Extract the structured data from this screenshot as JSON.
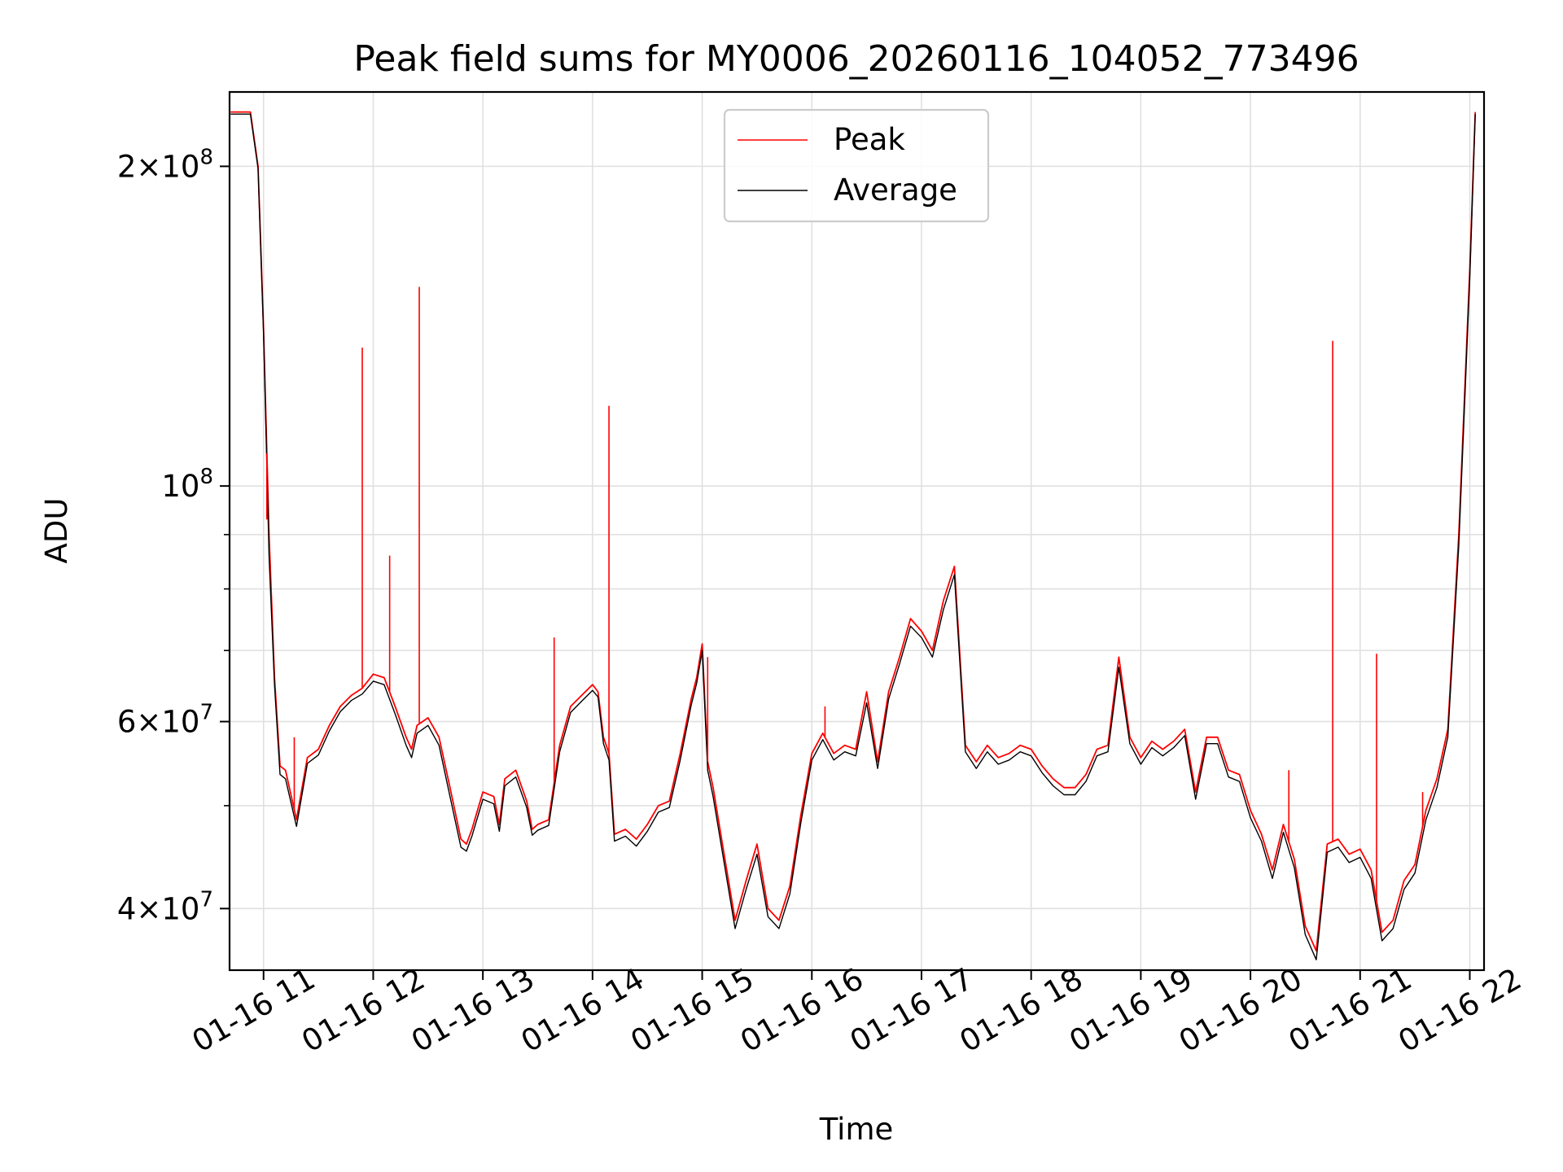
{
  "chart_data": {
    "type": "line",
    "title": "Peak field sums for MY0006_20260116_104052_773496",
    "xlabel": "Time",
    "ylabel": "ADU",
    "yscale": "log",
    "ylim": [
      35000000,
      235000000
    ],
    "xlim": [
      10.69,
      22.13
    ],
    "grid": true,
    "legend_position": "top-center",
    "x_tick_values": [
      11,
      12,
      13,
      14,
      15,
      16,
      17,
      18,
      19,
      20,
      21,
      22
    ],
    "x_tick_labels": [
      "01-16 11",
      "01-16 12",
      "01-16 13",
      "01-16 14",
      "01-16 15",
      "01-16 16",
      "01-16 17",
      "01-16 18",
      "01-16 19",
      "01-16 20",
      "01-16 21",
      "01-16 22"
    ],
    "y_major_ticks": [
      {
        "value": 40000000,
        "mantissa": "4",
        "exponent": "7"
      },
      {
        "value": 60000000,
        "mantissa": "6",
        "exponent": "7"
      },
      {
        "value": 100000000,
        "mantissa": "",
        "exponent": "8"
      },
      {
        "value": 200000000,
        "mantissa": "2",
        "exponent": "8"
      }
    ],
    "y_minor_ticks": [
      50000000,
      70000000,
      80000000,
      90000000
    ],
    "series": [
      {
        "name": "Peak",
        "color": "#ff0000",
        "x": [
          10.7,
          10.8,
          10.88,
          10.95,
          11.0,
          11.05,
          11.1,
          11.15,
          11.2,
          11.3,
          11.4,
          11.5,
          11.6,
          11.7,
          11.8,
          11.9,
          12.0,
          12.1,
          12.2,
          12.3,
          12.35,
          12.4,
          12.5,
          12.6,
          12.7,
          12.8,
          12.85,
          12.9,
          13.0,
          13.1,
          13.15,
          13.2,
          13.3,
          13.4,
          13.45,
          13.5,
          13.6,
          13.7,
          13.8,
          13.9,
          14.0,
          14.05,
          14.1,
          14.15,
          14.2,
          14.3,
          14.4,
          14.5,
          14.6,
          14.7,
          14.8,
          14.9,
          14.95,
          15.0,
          15.05,
          15.1,
          15.2,
          15.3,
          15.4,
          15.5,
          15.6,
          15.7,
          15.8,
          15.9,
          16.0,
          16.1,
          16.2,
          16.3,
          16.4,
          16.5,
          16.6,
          16.7,
          16.8,
          16.9,
          17.0,
          17.1,
          17.2,
          17.3,
          17.4,
          17.5,
          17.6,
          17.7,
          17.8,
          17.9,
          18.0,
          18.1,
          18.2,
          18.3,
          18.4,
          18.5,
          18.6,
          18.7,
          18.8,
          18.9,
          19.0,
          19.1,
          19.2,
          19.3,
          19.4,
          19.5,
          19.6,
          19.7,
          19.8,
          19.9,
          20.0,
          20.1,
          20.2,
          20.3,
          20.4,
          20.5,
          20.6,
          20.7,
          20.8,
          20.9,
          21.0,
          21.1,
          21.2,
          21.3,
          21.4,
          21.5,
          21.6,
          21.7,
          21.8,
          21.9,
          22.0,
          22.05
        ],
        "y": [
          225000000,
          225000000,
          225000000,
          200000000,
          140000000,
          90000000,
          66000000,
          54500000,
          54000000,
          48500000,
          55500000,
          56500000,
          59500000,
          62000000,
          63500000,
          64500000,
          66500000,
          66000000,
          62000000,
          58000000,
          56500000,
          59500000,
          60500000,
          58000000,
          52000000,
          46500000,
          46000000,
          47500000,
          51500000,
          51000000,
          48000000,
          53000000,
          54000000,
          50500000,
          47500000,
          48000000,
          48500000,
          57000000,
          62000000,
          63500000,
          65000000,
          64000000,
          58000000,
          56000000,
          47000000,
          47500000,
          46500000,
          48000000,
          50000000,
          50500000,
          56000000,
          63000000,
          66000000,
          71000000,
          55000000,
          52000000,
          45000000,
          39000000,
          42500000,
          46000000,
          40000000,
          39000000,
          42000000,
          49000000,
          56000000,
          58500000,
          56000000,
          57000000,
          56500000,
          64000000,
          55000000,
          64000000,
          69000000,
          75000000,
          73000000,
          70000000,
          78000000,
          84000000,
          57000000,
          55000000,
          57000000,
          55500000,
          56000000,
          57000000,
          56500000,
          54500000,
          53000000,
          52000000,
          52000000,
          53500000,
          56500000,
          57000000,
          69000000,
          58000000,
          55500000,
          57500000,
          56500000,
          57500000,
          59000000,
          51500000,
          58000000,
          58000000,
          54000000,
          53500000,
          49500000,
          47000000,
          43500000,
          48000000,
          44500000,
          38500000,
          36500000,
          46000000,
          46500000,
          45000000,
          45500000,
          43500000,
          38000000,
          39000000,
          42500000,
          44000000,
          49500000,
          53000000,
          59000000,
          90000000,
          160000000,
          225000000
        ]
      },
      {
        "name": "Average",
        "color": "#000000",
        "x": [
          10.7,
          10.8,
          10.88,
          10.95,
          11.0,
          11.05,
          11.1,
          11.15,
          11.2,
          11.3,
          11.4,
          11.5,
          11.6,
          11.7,
          11.8,
          11.9,
          12.0,
          12.1,
          12.2,
          12.3,
          12.35,
          12.4,
          12.5,
          12.6,
          12.7,
          12.8,
          12.85,
          12.9,
          13.0,
          13.1,
          13.15,
          13.2,
          13.3,
          13.4,
          13.45,
          13.5,
          13.6,
          13.7,
          13.8,
          13.9,
          14.0,
          14.05,
          14.1,
          14.15,
          14.2,
          14.3,
          14.4,
          14.5,
          14.6,
          14.7,
          14.8,
          14.9,
          14.95,
          15.0,
          15.05,
          15.1,
          15.2,
          15.3,
          15.4,
          15.5,
          15.6,
          15.7,
          15.8,
          15.9,
          16.0,
          16.1,
          16.2,
          16.3,
          16.4,
          16.5,
          16.6,
          16.7,
          16.8,
          16.9,
          17.0,
          17.1,
          17.2,
          17.3,
          17.4,
          17.5,
          17.6,
          17.7,
          17.8,
          17.9,
          18.0,
          18.1,
          18.2,
          18.3,
          18.4,
          18.5,
          18.6,
          18.7,
          18.8,
          18.9,
          19.0,
          19.1,
          19.2,
          19.3,
          19.4,
          19.5,
          19.6,
          19.7,
          19.8,
          19.9,
          20.0,
          20.1,
          20.2,
          20.3,
          20.4,
          20.5,
          20.6,
          20.7,
          20.8,
          20.9,
          21.0,
          21.1,
          21.2,
          21.3,
          21.4,
          21.5,
          21.6,
          21.7,
          21.8,
          21.9,
          22.0,
          22.05
        ],
        "y": [
          224000000,
          224000000,
          224000000,
          199000000,
          139000000,
          86000000,
          65000000,
          53500000,
          53000000,
          47800000,
          54800000,
          55800000,
          58800000,
          61300000,
          62800000,
          63700000,
          65500000,
          65000000,
          61000000,
          57000000,
          55500000,
          58500000,
          59500000,
          57000000,
          51000000,
          45700000,
          45300000,
          46800000,
          50700000,
          50200000,
          47300000,
          52200000,
          53200000,
          49800000,
          46900000,
          47400000,
          47900000,
          56200000,
          61200000,
          62700000,
          64200000,
          63300000,
          57200000,
          55200000,
          46300000,
          46800000,
          45800000,
          47300000,
          49300000,
          49800000,
          55200000,
          62200000,
          65200000,
          70000000,
          54000000,
          51000000,
          44200000,
          38300000,
          41700000,
          45000000,
          39300000,
          38300000,
          41300000,
          48200000,
          55200000,
          57700000,
          55200000,
          56200000,
          55700000,
          62500000,
          54200000,
          63000000,
          68000000,
          73800000,
          72000000,
          69000000,
          76500000,
          82500000,
          56200000,
          54200000,
          56200000,
          54700000,
          55200000,
          56200000,
          55700000,
          53700000,
          52200000,
          51200000,
          51200000,
          52700000,
          55700000,
          56200000,
          67500000,
          57200000,
          54700000,
          56700000,
          55700000,
          56700000,
          58200000,
          50700000,
          57200000,
          57200000,
          53200000,
          52700000,
          48700000,
          46300000,
          42700000,
          47200000,
          43700000,
          37800000,
          35800000,
          45200000,
          45700000,
          44200000,
          44700000,
          42700000,
          37300000,
          38300000,
          41700000,
          43200000,
          48500000,
          52000000,
          58000000,
          88000000,
          157000000,
          224000000
        ]
      }
    ],
    "spikes": [
      {
        "series": "Peak",
        "x": 11.03,
        "y": 93000000
      },
      {
        "series": "Peak",
        "x": 11.28,
        "y": 58000000
      },
      {
        "series": "Peak",
        "x": 11.9,
        "y": 135000000
      },
      {
        "series": "Peak",
        "x": 12.15,
        "y": 86000000
      },
      {
        "series": "Peak",
        "x": 12.42,
        "y": 154000000
      },
      {
        "series": "Peak",
        "x": 13.65,
        "y": 72000000
      },
      {
        "series": "Peak",
        "x": 14.15,
        "y": 119000000
      },
      {
        "series": "Peak",
        "x": 15.05,
        "y": 69000000
      },
      {
        "series": "Peak",
        "x": 16.12,
        "y": 62000000
      },
      {
        "series": "Peak",
        "x": 20.35,
        "y": 54000000
      },
      {
        "series": "Peak",
        "x": 20.75,
        "y": 137000000
      },
      {
        "series": "Peak",
        "x": 21.15,
        "y": 69500000
      },
      {
        "series": "Peak",
        "x": 21.57,
        "y": 51500000
      }
    ]
  }
}
